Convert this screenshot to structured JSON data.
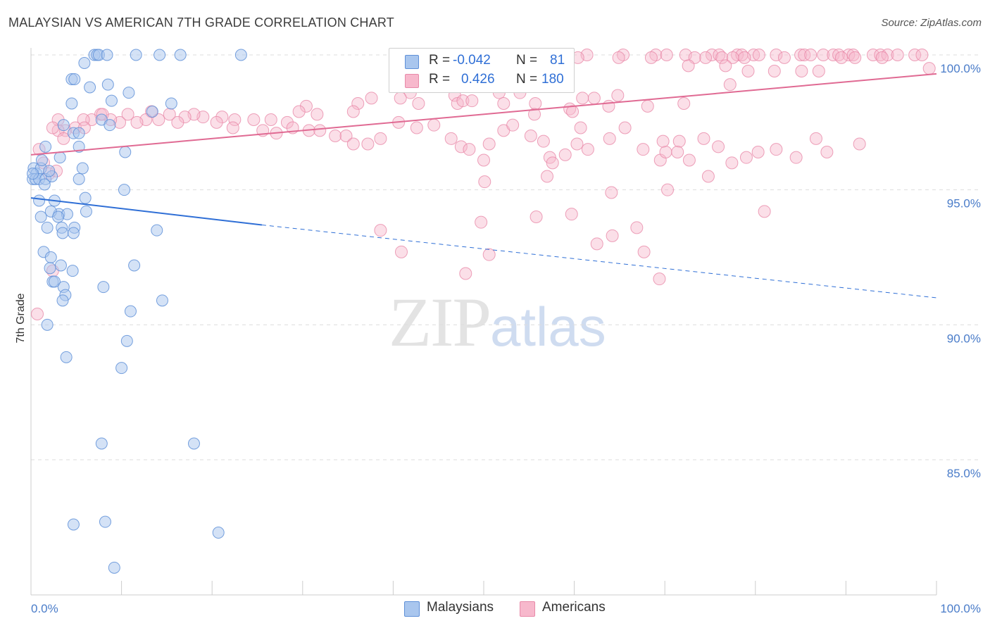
{
  "header": {
    "title": "MALAYSIAN VS AMERICAN 7TH GRADE CORRELATION CHART",
    "source": "Source: ZipAtlas.com"
  },
  "legend": {
    "rows": [
      {
        "r_label": "R =",
        "r_value": "-0.042",
        "n_label": "N =",
        "n_value": "81",
        "color": "#a9c6ee"
      },
      {
        "r_label": "R =",
        "r_value": "0.426",
        "n_label": "N =",
        "n_value": "180",
        "color": "#f7b8cc"
      }
    ]
  },
  "bottom_legend": [
    {
      "label": "Malaysians",
      "color": "#a9c6ee"
    },
    {
      "label": "Americans",
      "color": "#f7b8cc"
    }
  ],
  "watermark": {
    "zip": "ZIP",
    "atlas": "atlas"
  },
  "colors": {
    "blue_fill": "#a9c6ee",
    "blue_stroke": "#5f90d8",
    "blue_line": "#2f6fd6",
    "pink_fill": "#f7b8cc",
    "pink_stroke": "#e88aa9",
    "pink_line": "#e06a93",
    "tick_text": "#4a7cc9",
    "grid": "#dddddd"
  },
  "chart_data": {
    "type": "scatter",
    "title": "MALAYSIAN VS AMERICAN 7TH GRADE CORRELATION CHART",
    "ylabel": "7th Grade",
    "xlabel": "",
    "xlim": [
      0,
      100
    ],
    "ylim": [
      80.5,
      100.8
    ],
    "x_ticks": [
      "0.0%",
      "100.0%"
    ],
    "y_ticks": [
      {
        "value": 85,
        "label": "85.0%"
      },
      {
        "value": 90,
        "label": "90.0%"
      },
      {
        "value": 95,
        "label": "95.0%"
      },
      {
        "value": 100,
        "label": "100.0%"
      }
    ],
    "grid": true,
    "legend_position": "top-center",
    "series": [
      {
        "name": "Malaysians",
        "r": -0.042,
        "n": 81,
        "trend": {
          "x0": 0,
          "y0": 94.7,
          "x1": 25.5,
          "y1": 93.7,
          "dashed_to_x": 100,
          "dashed_to_y": 91.0
        },
        "points": [
          [
            7.0,
            100
          ],
          [
            7.3,
            100
          ],
          [
            7.5,
            100
          ],
          [
            8.4,
            100
          ],
          [
            11.6,
            100
          ],
          [
            14.2,
            100
          ],
          [
            16.5,
            100
          ],
          [
            23.2,
            100
          ],
          [
            5.9,
            99.7
          ],
          [
            4.5,
            99.1
          ],
          [
            4.8,
            99.1
          ],
          [
            8.5,
            98.9
          ],
          [
            6.5,
            98.8
          ],
          [
            10.8,
            98.6
          ],
          [
            8.9,
            98.3
          ],
          [
            4.5,
            98.2
          ],
          [
            13.4,
            97.9
          ],
          [
            15.5,
            98.2
          ],
          [
            4.7,
            97.1
          ],
          [
            5.3,
            97.1
          ],
          [
            7.8,
            97.6
          ],
          [
            8.7,
            97.4
          ],
          [
            3.6,
            97.4
          ],
          [
            1.6,
            96.6
          ],
          [
            5.3,
            96.6
          ],
          [
            3.2,
            96.2
          ],
          [
            10.4,
            96.4
          ],
          [
            0.3,
            95.8
          ],
          [
            0.6,
            95.6
          ],
          [
            0.2,
            95.4
          ],
          [
            0.5,
            95.4
          ],
          [
            0.9,
            95.4
          ],
          [
            1.1,
            95.8
          ],
          [
            1.6,
            95.4
          ],
          [
            2.3,
            95.5
          ],
          [
            5.7,
            95.8
          ],
          [
            5.3,
            95.4
          ],
          [
            1.5,
            95.2
          ],
          [
            10.3,
            95.0
          ],
          [
            0.9,
            94.6
          ],
          [
            2.6,
            94.6
          ],
          [
            6.0,
            94.7
          ],
          [
            3.1,
            94.1
          ],
          [
            2.2,
            94.2
          ],
          [
            4.0,
            94.1
          ],
          [
            6.1,
            94.2
          ],
          [
            1.1,
            94.0
          ],
          [
            3.0,
            94.0
          ],
          [
            1.8,
            93.6
          ],
          [
            3.4,
            93.6
          ],
          [
            4.8,
            93.6
          ],
          [
            13.9,
            93.5
          ],
          [
            3.5,
            93.4
          ],
          [
            4.7,
            93.4
          ],
          [
            1.4,
            92.7
          ],
          [
            2.2,
            92.5
          ],
          [
            11.4,
            92.2
          ],
          [
            2.1,
            92.1
          ],
          [
            4.6,
            92.0
          ],
          [
            2.4,
            91.6
          ],
          [
            2.6,
            91.6
          ],
          [
            8.0,
            91.4
          ],
          [
            3.6,
            91.4
          ],
          [
            3.8,
            91.1
          ],
          [
            3.5,
            90.9
          ],
          [
            14.5,
            90.9
          ],
          [
            11.0,
            90.5
          ],
          [
            1.8,
            90.0
          ],
          [
            10.6,
            89.4
          ],
          [
            3.9,
            88.8
          ],
          [
            10.0,
            88.4
          ],
          [
            7.8,
            85.6
          ],
          [
            18.0,
            85.6
          ],
          [
            4.7,
            82.6
          ],
          [
            8.2,
            82.7
          ],
          [
            20.7,
            82.3
          ],
          [
            9.2,
            81.0
          ],
          [
            0.2,
            95.6
          ],
          [
            2.0,
            95.7
          ],
          [
            1.2,
            96.1
          ],
          [
            3.3,
            92.2
          ]
        ]
      },
      {
        "name": "Americans",
        "r": 0.426,
        "n": 180,
        "trend": {
          "x0": 0,
          "y0": 96.3,
          "x1": 100,
          "y1": 99.3
        },
        "points": [
          [
            58.7,
            100
          ],
          [
            61.4,
            100
          ],
          [
            65.4,
            100
          ],
          [
            69.0,
            100
          ],
          [
            70.2,
            100
          ],
          [
            72.3,
            100
          ],
          [
            75.2,
            100
          ],
          [
            76.0,
            100
          ],
          [
            78.0,
            100
          ],
          [
            78.5,
            100
          ],
          [
            79.8,
            100
          ],
          [
            80.4,
            100
          ],
          [
            82.3,
            100
          ],
          [
            85.0,
            100
          ],
          [
            85.4,
            100
          ],
          [
            86.1,
            100
          ],
          [
            87.5,
            100
          ],
          [
            88.6,
            100
          ],
          [
            89.2,
            100
          ],
          [
            90.3,
            100
          ],
          [
            90.8,
            100
          ],
          [
            93.0,
            100
          ],
          [
            93.8,
            100
          ],
          [
            94.6,
            100
          ],
          [
            95.7,
            100
          ],
          [
            97.6,
            100
          ],
          [
            98.4,
            100
          ],
          [
            53.8,
            99.7
          ],
          [
            60.4,
            99.9
          ],
          [
            64.9,
            99.9
          ],
          [
            68.5,
            99.9
          ],
          [
            74.5,
            99.9
          ],
          [
            76.3,
            99.9
          ],
          [
            73.3,
            99.9
          ],
          [
            77.5,
            99.9
          ],
          [
            78.8,
            99.9
          ],
          [
            83.2,
            99.9
          ],
          [
            89.5,
            99.9
          ],
          [
            91.0,
            99.9
          ],
          [
            94.0,
            99.9
          ],
          [
            76.7,
            99.6
          ],
          [
            72.6,
            99.6
          ],
          [
            99.2,
            99.5
          ],
          [
            82.1,
            99.4
          ],
          [
            85.1,
            99.4
          ],
          [
            79.2,
            99.4
          ],
          [
            87.0,
            99.4
          ],
          [
            53.4,
            99.0
          ],
          [
            56.3,
            98.9
          ],
          [
            77.2,
            98.9
          ],
          [
            51.7,
            98.6
          ],
          [
            41.9,
            98.6
          ],
          [
            54.0,
            98.6
          ],
          [
            37.6,
            98.4
          ],
          [
            40.8,
            98.4
          ],
          [
            42.8,
            98.2
          ],
          [
            46.8,
            98.5
          ],
          [
            47.1,
            98.2
          ],
          [
            52.2,
            98.2
          ],
          [
            55.7,
            98.2
          ],
          [
            60.9,
            98.4
          ],
          [
            62.2,
            98.4
          ],
          [
            64.8,
            98.5
          ],
          [
            68.1,
            98.1
          ],
          [
            72.1,
            98.2
          ],
          [
            63.8,
            98.1
          ],
          [
            59.5,
            98.0
          ],
          [
            59.8,
            97.9
          ],
          [
            55.6,
            97.8
          ],
          [
            47.7,
            98.3
          ],
          [
            48.7,
            98.3
          ],
          [
            36.1,
            98.2
          ],
          [
            35.6,
            97.9
          ],
          [
            30.4,
            98.1
          ],
          [
            31.6,
            97.8
          ],
          [
            29.6,
            97.9
          ],
          [
            28.3,
            97.5
          ],
          [
            26.5,
            97.6
          ],
          [
            24.6,
            97.6
          ],
          [
            22.5,
            97.6
          ],
          [
            21.1,
            97.7
          ],
          [
            20.5,
            97.5
          ],
          [
            19.0,
            97.7
          ],
          [
            18.0,
            97.8
          ],
          [
            17.0,
            97.7
          ],
          [
            16.2,
            97.5
          ],
          [
            15.3,
            97.8
          ],
          [
            13.3,
            97.9
          ],
          [
            14.1,
            97.6
          ],
          [
            12.7,
            97.6
          ],
          [
            11.7,
            97.5
          ],
          [
            10.7,
            97.8
          ],
          [
            9.8,
            97.5
          ],
          [
            8.8,
            97.6
          ],
          [
            7.7,
            97.8
          ],
          [
            6.7,
            97.6
          ],
          [
            5.8,
            97.6
          ],
          [
            4.9,
            97.3
          ],
          [
            3.8,
            97.2
          ],
          [
            3.0,
            97.2
          ],
          [
            22.3,
            97.3
          ],
          [
            25.6,
            97.2
          ],
          [
            27.1,
            97.1
          ],
          [
            28.9,
            97.3
          ],
          [
            30.7,
            97.2
          ],
          [
            31.9,
            97.2
          ],
          [
            33.6,
            97.0
          ],
          [
            34.8,
            97.0
          ],
          [
            35.6,
            96.7
          ],
          [
            37.2,
            96.7
          ],
          [
            38.6,
            96.9
          ],
          [
            40.6,
            97.5
          ],
          [
            42.6,
            97.3
          ],
          [
            44.5,
            97.4
          ],
          [
            46.4,
            96.9
          ],
          [
            47.5,
            96.6
          ],
          [
            48.4,
            96.5
          ],
          [
            50.0,
            96.1
          ],
          [
            50.6,
            96.7
          ],
          [
            52.2,
            97.2
          ],
          [
            53.2,
            97.4
          ],
          [
            55.2,
            97.0
          ],
          [
            56.6,
            96.8
          ],
          [
            57.3,
            96.2
          ],
          [
            57.6,
            96.0
          ],
          [
            59.0,
            96.3
          ],
          [
            60.3,
            96.7
          ],
          [
            61.5,
            96.5
          ],
          [
            63.9,
            96.9
          ],
          [
            65.6,
            97.3
          ],
          [
            67.6,
            96.5
          ],
          [
            69.5,
            96.1
          ],
          [
            70.1,
            96.4
          ],
          [
            71.6,
            96.8
          ],
          [
            72.7,
            96.1
          ],
          [
            74.3,
            96.9
          ],
          [
            75.9,
            96.6
          ],
          [
            77.4,
            96.0
          ],
          [
            79.0,
            96.2
          ],
          [
            80.3,
            96.4
          ],
          [
            82.3,
            96.5
          ],
          [
            84.5,
            96.2
          ],
          [
            86.7,
            96.9
          ],
          [
            87.9,
            96.4
          ],
          [
            91.5,
            96.7
          ],
          [
            74.8,
            95.5
          ],
          [
            70.3,
            95.0
          ],
          [
            64.1,
            94.9
          ],
          [
            57.0,
            95.5
          ],
          [
            50.1,
            95.3
          ],
          [
            66.9,
            93.6
          ],
          [
            67.7,
            92.7
          ],
          [
            64.2,
            93.3
          ],
          [
            59.7,
            94.1
          ],
          [
            55.8,
            94.0
          ],
          [
            50.6,
            92.6
          ],
          [
            49.7,
            93.8
          ],
          [
            38.6,
            93.5
          ],
          [
            40.9,
            92.7
          ],
          [
            48.0,
            91.9
          ],
          [
            69.4,
            91.7
          ],
          [
            62.5,
            93.0
          ],
          [
            81.0,
            94.2
          ],
          [
            69.8,
            96.8
          ],
          [
            60.7,
            97.3
          ],
          [
            71.4,
            96.4
          ],
          [
            2.4,
            92.0
          ],
          [
            0.7,
            90.4
          ],
          [
            7.9,
            97.8
          ],
          [
            5.9,
            97.3
          ],
          [
            3.0,
            97.6
          ],
          [
            2.4,
            97.3
          ],
          [
            3.6,
            96.9
          ],
          [
            2.0,
            95.6
          ],
          [
            1.4,
            96.0
          ],
          [
            2.8,
            95.7
          ],
          [
            0.9,
            96.5
          ]
        ]
      }
    ]
  }
}
